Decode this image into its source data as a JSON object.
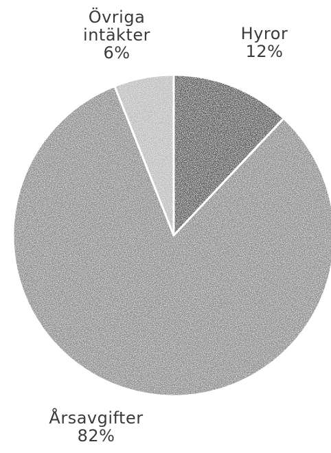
{
  "chart_data": {
    "type": "pie",
    "slices": [
      {
        "label": "Hyror",
        "value": 12,
        "value_label": "12%",
        "color": "#5a5a5a"
      },
      {
        "label": "Årsavgifter",
        "value": 82,
        "value_label": "82%",
        "color": "#8d8d8d"
      },
      {
        "label": "Övriga intäkter",
        "value": 6,
        "value_label": "6%",
        "color": "#bdbdbd"
      }
    ]
  }
}
